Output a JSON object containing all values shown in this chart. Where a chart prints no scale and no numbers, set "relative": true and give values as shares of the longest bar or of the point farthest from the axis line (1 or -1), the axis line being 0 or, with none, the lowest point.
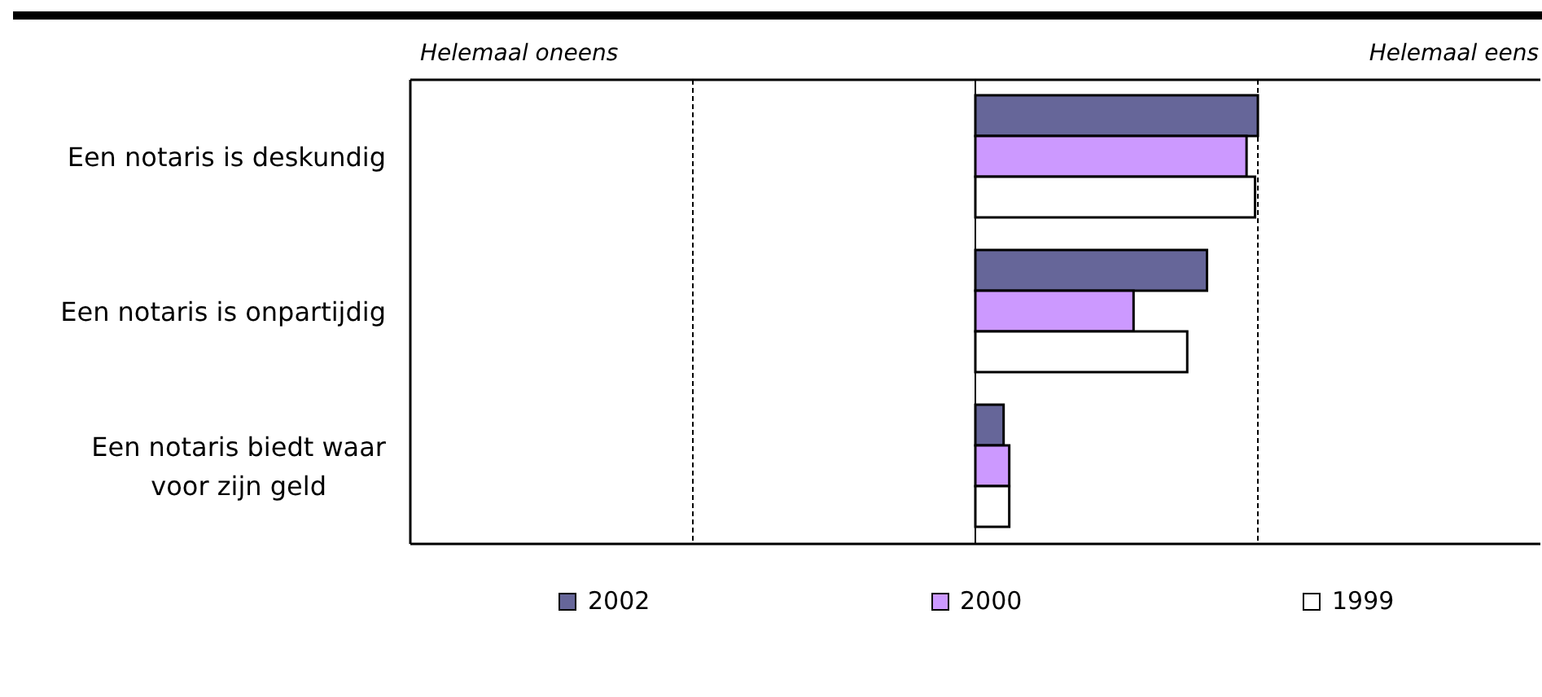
{
  "chart_data": {
    "type": "bar",
    "orientation": "horizontal",
    "relative": true,
    "categories": [
      "Een notaris is deskundig",
      "Een notaris is onpartijdig",
      "Een notaris biedt waar voor zijn geld"
    ],
    "series": [
      {
        "name": "2002",
        "color": "#666699",
        "values": [
          1,
          0.82,
          0.1
        ]
      },
      {
        "name": "2000",
        "color": "#cc99ff",
        "values": [
          0.96,
          0.56,
          0.12
        ]
      },
      {
        "name": "1999",
        "color": "#ffffff",
        "values": [
          0.99,
          0.75,
          0.12
        ]
      }
    ],
    "annotations": [
      "Helemaal oneens",
      "Helemaal eens"
    ],
    "grid": "x",
    "legend": "bottom"
  }
}
